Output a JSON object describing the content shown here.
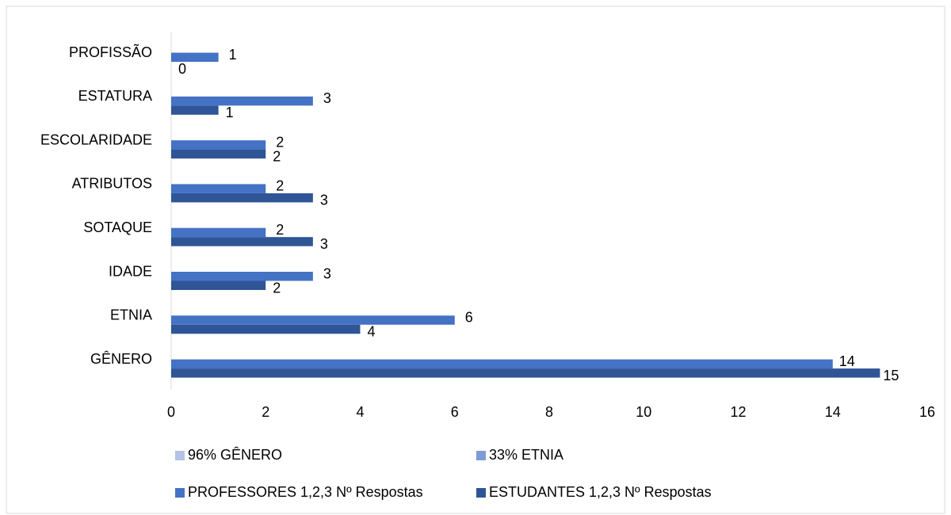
{
  "chart_data": {
    "type": "bar",
    "orientation": "horizontal",
    "categories": [
      "PROFISSÃO",
      "ESTATURA",
      "ESCOLARIDADE",
      "ATRIBUTOS",
      "SOTAQUE",
      "IDADE",
      "ETNIA",
      "GÊNERO"
    ],
    "series": [
      {
        "name": "96% GÊNERO",
        "color": "#b4c3e3",
        "values": [
          null,
          null,
          null,
          null,
          null,
          null,
          null,
          null
        ]
      },
      {
        "name": "33% ETNIA",
        "color": "#7f9bd6",
        "values": [
          null,
          null,
          null,
          null,
          null,
          null,
          null,
          null
        ]
      },
      {
        "name": "PROFESSORES 1,2,3 Nº Respostas",
        "color": "#4472c4",
        "values": [
          1,
          3,
          2,
          2,
          2,
          3,
          6,
          14
        ]
      },
      {
        "name": "ESTUDANTES 1,2,3 Nº Respostas",
        "color": "#2f5597",
        "values": [
          0,
          1,
          2,
          3,
          3,
          2,
          4,
          15
        ]
      }
    ],
    "xlim": [
      0,
      16
    ],
    "xticks": [
      0,
      2,
      4,
      6,
      8,
      10,
      12,
      14,
      16
    ],
    "grid": false,
    "legend": "bottom"
  }
}
